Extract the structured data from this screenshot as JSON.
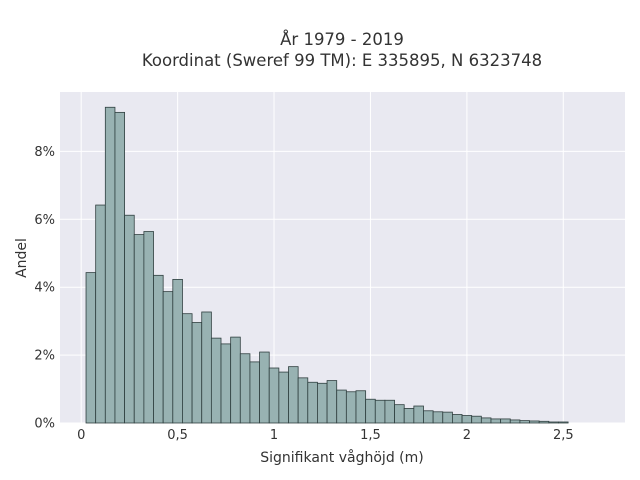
{
  "chart_data": {
    "type": "bar",
    "title_line1": "År 1979 - 2019",
    "title_line2": "Koordinat (Sweref 99 TM): E 335895, N 6323748",
    "xlabel": "Signifikant våghöjd (m)",
    "ylabel": "Andel",
    "x_ticks": [
      "0",
      "0,5",
      "1",
      "1,5",
      "2",
      "2,5"
    ],
    "x_tick_values": [
      0,
      0.5,
      1,
      1.5,
      2,
      2.5
    ],
    "y_ticks": [
      "0%",
      "2%",
      "4%",
      "6%",
      "8%"
    ],
    "y_tick_values": [
      0,
      2,
      4,
      6,
      8
    ],
    "xlim": [
      -0.11,
      2.82
    ],
    "ylim": [
      0,
      9.75
    ],
    "grid": true,
    "bin_start": 0.025,
    "bin_width": 0.05,
    "values": [
      4.43,
      6.42,
      9.3,
      9.15,
      6.12,
      5.55,
      5.64,
      4.35,
      3.87,
      4.23,
      3.22,
      2.96,
      3.27,
      2.5,
      2.33,
      2.53,
      2.04,
      1.8,
      2.09,
      1.62,
      1.5,
      1.66,
      1.33,
      1.2,
      1.17,
      1.25,
      0.97,
      0.92,
      0.95,
      0.7,
      0.67,
      0.67,
      0.54,
      0.43,
      0.5,
      0.36,
      0.33,
      0.32,
      0.25,
      0.22,
      0.2,
      0.15,
      0.12,
      0.12,
      0.09,
      0.07,
      0.06,
      0.05,
      0.03,
      0.03
    ],
    "colors": {
      "plot_background": "#e9e9f1",
      "bar_fill": "#98b2b2",
      "bar_stroke": "#2f3f3f",
      "grid": "#ffffff",
      "text": "#333333"
    }
  }
}
